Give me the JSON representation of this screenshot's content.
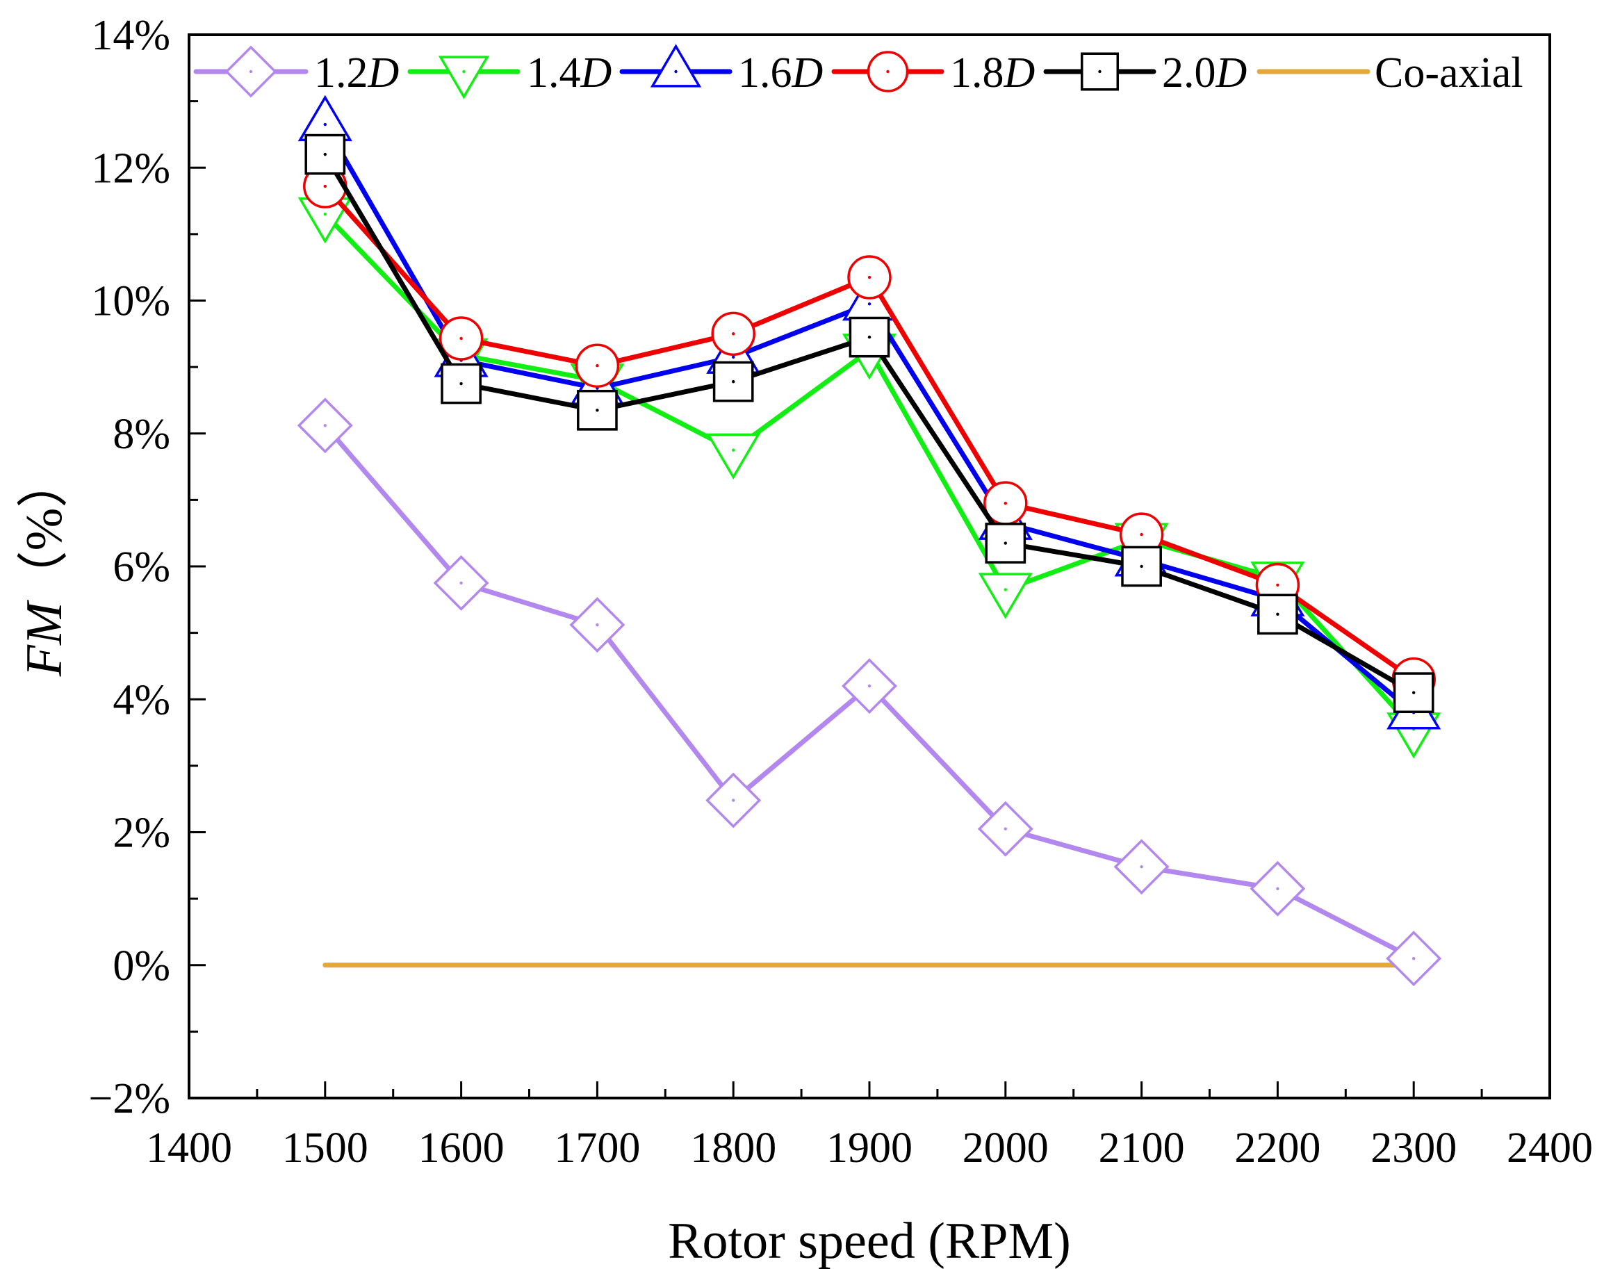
{
  "chart_data": {
    "type": "line",
    "title": "",
    "xlabel": "Rotor speed (RPM)",
    "ylabel_italic": "FM",
    "ylabel_suffix": "（%）",
    "xlim": [
      1400,
      2400
    ],
    "ylim": [
      -2,
      14
    ],
    "x_ticks": [
      1400,
      1500,
      1600,
      1700,
      1800,
      1900,
      2000,
      2100,
      2200,
      2300,
      2400
    ],
    "x_tick_labels": [
      "1400",
      "1500",
      "1600",
      "1700",
      "1800",
      "1900",
      "2000",
      "2100",
      "2200",
      "2300",
      "2400"
    ],
    "y_ticks": [
      -2,
      0,
      2,
      4,
      6,
      8,
      10,
      12,
      14
    ],
    "y_tick_labels": [
      "−2%",
      "0%",
      "2%",
      "4%",
      "6%",
      "8%",
      "10%",
      "12%",
      "14%"
    ],
    "grid": false,
    "legend_position": "top",
    "x": [
      1500,
      1600,
      1700,
      1800,
      1900,
      2000,
      2100,
      2200,
      2300
    ],
    "series": [
      {
        "name": "1.2D",
        "label_main": "1.2",
        "label_italic": "D",
        "color": "#B388EE",
        "marker": "diamond",
        "values": [
          8.12,
          5.75,
          5.12,
          2.48,
          4.2,
          2.05,
          1.48,
          1.15,
          0.1
        ]
      },
      {
        "name": "1.4D",
        "label_main": "1.4",
        "label_italic": "D",
        "color": "#11EE11",
        "marker": "triangle-down",
        "values": [
          11.3,
          9.18,
          8.8,
          7.75,
          9.25,
          5.65,
          6.4,
          5.82,
          3.55
        ]
      },
      {
        "name": "1.6D",
        "label_main": "1.6",
        "label_italic": "D",
        "color": "#0000EE",
        "marker": "triangle-up",
        "values": [
          12.65,
          9.1,
          8.68,
          9.15,
          9.95,
          6.65,
          6.1,
          5.5,
          3.8
        ]
      },
      {
        "name": "1.8D",
        "label_main": "1.8",
        "label_italic": "D",
        "color": "#EE0000",
        "marker": "circle",
        "values": [
          11.72,
          9.43,
          9.02,
          9.5,
          10.35,
          6.95,
          6.48,
          5.72,
          4.3
        ]
      },
      {
        "name": "2.0D",
        "label_main": "2.0",
        "label_italic": "D",
        "color": "#000000",
        "marker": "square",
        "values": [
          12.2,
          8.75,
          8.35,
          8.78,
          9.45,
          6.35,
          6.0,
          5.28,
          4.1
        ]
      },
      {
        "name": "Co-axial",
        "label_main": "Co-axial",
        "label_italic": "",
        "color": "#E2A93A",
        "marker": "none",
        "values": [
          0,
          0,
          0,
          0,
          0,
          0,
          0,
          0,
          0
        ]
      }
    ]
  }
}
